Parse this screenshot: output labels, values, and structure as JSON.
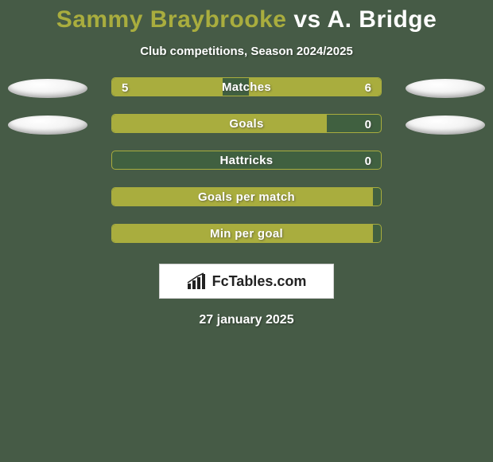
{
  "colors": {
    "background": "#465b46",
    "accent": "#a9ad3e",
    "bar_track": "#406040",
    "text": "#ffffff"
  },
  "header": {
    "player1": "Sammy Braybrooke",
    "vs": "vs",
    "player2": "A. Bridge"
  },
  "subtitle": "Club competitions, Season 2024/2025",
  "rows": [
    {
      "label": "Matches",
      "left_val": "5",
      "right_val": "6",
      "left_pct": 41,
      "right_pct": 49,
      "show_left_oval": true,
      "show_right_oval": true,
      "show_vals": true
    },
    {
      "label": "Goals",
      "left_val": "",
      "right_val": "0",
      "left_pct": 80,
      "right_pct": 0,
      "show_left_oval": true,
      "show_right_oval": true,
      "show_vals": true
    },
    {
      "label": "Hattricks",
      "left_val": "",
      "right_val": "0",
      "left_pct": 0,
      "right_pct": 0,
      "show_left_oval": false,
      "show_right_oval": false,
      "show_vals": true
    },
    {
      "label": "Goals per match",
      "left_val": "",
      "right_val": "",
      "left_pct": 97,
      "right_pct": 0,
      "show_left_oval": false,
      "show_right_oval": false,
      "show_vals": false
    },
    {
      "label": "Min per goal",
      "left_val": "",
      "right_val": "",
      "left_pct": 97,
      "right_pct": 0,
      "show_left_oval": false,
      "show_right_oval": false,
      "show_vals": false
    }
  ],
  "logo": {
    "text": "FcTables.com"
  },
  "date": "27 january 2025",
  "typography": {
    "title_fontsize": 30,
    "subtitle_fontsize": 15,
    "row_label_fontsize": 15,
    "date_fontsize": 16
  }
}
